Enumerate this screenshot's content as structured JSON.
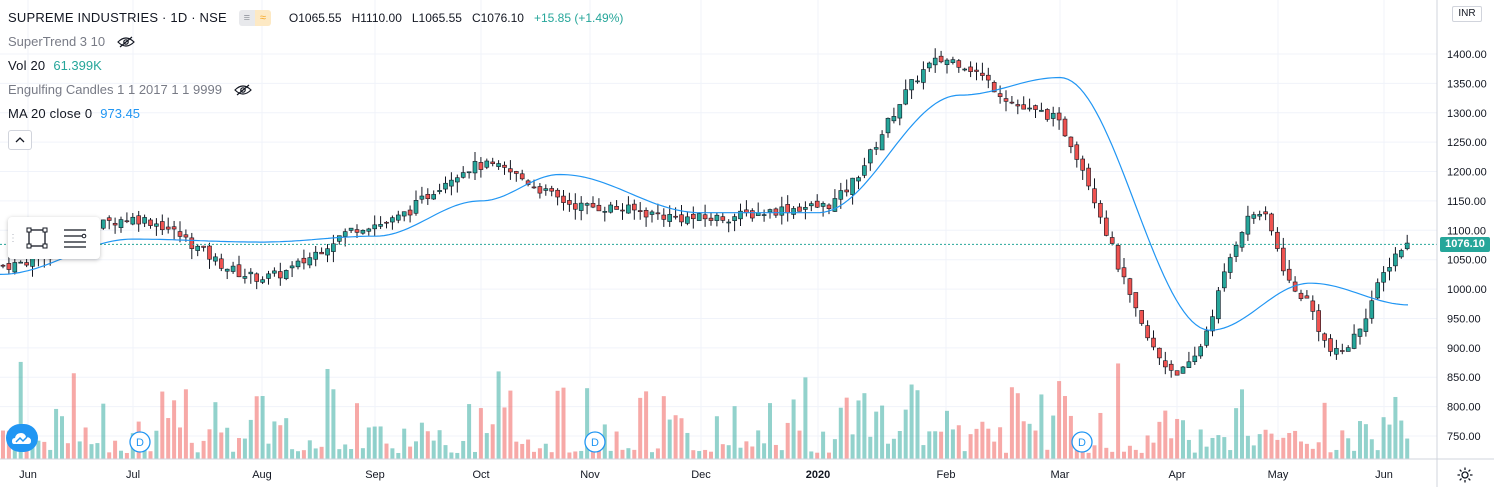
{
  "header": {
    "symbol_line": "SUPREME INDUSTRIES · 1D · NSE",
    "open": "O1065.55",
    "high": "H1110.00",
    "low": "L1065.55",
    "close": "C1076.10",
    "change": "+15.85 (+1.49%)"
  },
  "indicators": [
    {
      "label": "SuperTrend 3 10",
      "value": "",
      "icon": "eye-hidden-icon"
    },
    {
      "label": "Vol 20",
      "value": "61.399K",
      "icon": ""
    },
    {
      "label": "Engulfing Candles 1 1 2017 1 1 9999",
      "value": "",
      "icon": "eye-hidden-icon"
    },
    {
      "label": "MA 20 close 0",
      "value": "973.45",
      "icon": ""
    }
  ],
  "currency_label": "INR",
  "last_price_label": "1076.10",
  "colors": {
    "up": "#26a69a",
    "down": "#ef5350",
    "ma": "#2196f3",
    "grid": "#f0f3fa",
    "axis": "#787b86"
  },
  "chart_data": {
    "type": "candlestick",
    "x_ticks": [
      "Jun",
      "Jul",
      "Aug",
      "Sep",
      "Oct",
      "Nov",
      "Dec",
      "2020",
      "Feb",
      "Mar",
      "Apr",
      "May",
      "Jun"
    ],
    "y_ticks": [
      750,
      800,
      850,
      900,
      950,
      1000,
      1050,
      1100,
      1150,
      1200,
      1250,
      1300,
      1350,
      1400
    ],
    "ylim": [
      732,
      1440
    ],
    "last_price": 1076.1,
    "dividend_marker": "D",
    "dividend_months": [
      "Jul",
      "Nov",
      "Mar"
    ],
    "price_keypoints": [
      {
        "date": "Jun",
        "close": 1040
      },
      {
        "date": "Jul",
        "close": 1120
      },
      {
        "date": "Aug",
        "close": 1020
      },
      {
        "date": "Sep",
        "close": 1110
      },
      {
        "date": "Oct",
        "close": 1210
      },
      {
        "date": "Nov",
        "close": 1140
      },
      {
        "date": "Dec",
        "close": 1120
      },
      {
        "date": "2020",
        "close": 1140
      },
      {
        "date": "Feb",
        "close": 1390
      },
      {
        "date": "Mar",
        "close": 1300
      },
      {
        "date": "Apr",
        "close": 860
      },
      {
        "date": "Apr",
        "close": 1130
      },
      {
        "date": "May",
        "close": 990
      },
      {
        "date": "May",
        "close": 890
      },
      {
        "date": "Jun",
        "close": 1076
      }
    ],
    "ma_keypoints": [
      {
        "date": "Jun",
        "ma": 1025
      },
      {
        "date": "Jul",
        "ma": 1085
      },
      {
        "date": "Aug",
        "ma": 1080
      },
      {
        "date": "Sep",
        "ma": 1090
      },
      {
        "date": "Oct",
        "ma": 1150
      },
      {
        "date": "Nov",
        "ma": 1195
      },
      {
        "date": "Dec",
        "ma": 1130
      },
      {
        "date": "2020",
        "ma": 1130
      },
      {
        "date": "Feb",
        "ma": 1330
      },
      {
        "date": "Mar",
        "ma": 1360
      },
      {
        "date": "Apr",
        "ma": 930
      },
      {
        "date": "May",
        "ma": 1010
      },
      {
        "date": "Jun",
        "ma": 973
      }
    ]
  }
}
